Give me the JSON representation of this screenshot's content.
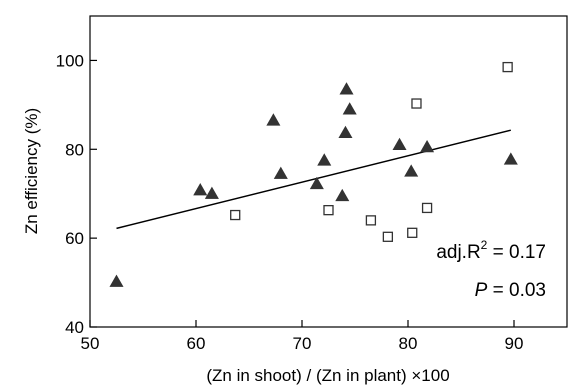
{
  "chart_data": {
    "type": "scatter",
    "title": "",
    "xlabel": "(Zn in shoot) / (Zn in plant) ×100",
    "ylabel": "Zn efficiency (%)",
    "xlim": [
      50,
      95
    ],
    "ylim": [
      40,
      110
    ],
    "xticks": [
      50,
      60,
      70,
      80,
      90
    ],
    "yticks": [
      40,
      60,
      80,
      100
    ],
    "grid": false,
    "series": [
      {
        "marker": "filled-triangle",
        "color": "#333333",
        "points": [
          [
            52.5,
            50.2
          ],
          [
            60.4,
            70.8
          ],
          [
            61.5,
            70.0
          ],
          [
            67.3,
            86.5
          ],
          [
            68.0,
            74.5
          ],
          [
            71.4,
            72.2
          ],
          [
            72.1,
            77.5
          ],
          [
            73.8,
            69.5
          ],
          [
            74.2,
            93.5
          ],
          [
            74.1,
            83.7
          ],
          [
            74.5,
            89.0
          ],
          [
            79.2,
            81.0
          ],
          [
            80.3,
            75.0
          ],
          [
            81.8,
            80.5
          ],
          [
            89.7,
            77.7
          ]
        ]
      },
      {
        "marker": "open-square",
        "color": "#333333",
        "points": [
          [
            63.7,
            65.2
          ],
          [
            72.5,
            66.3
          ],
          [
            76.5,
            64.0
          ],
          [
            78.1,
            60.3
          ],
          [
            80.4,
            61.2
          ],
          [
            80.8,
            90.3
          ],
          [
            81.8,
            66.8
          ],
          [
            89.4,
            98.5
          ]
        ]
      }
    ],
    "regression_line": {
      "x": [
        52.5,
        89.7
      ],
      "y": [
        62.2,
        84.3
      ]
    },
    "annotations": {
      "r2_prefix": "adj.R",
      "r2_sup": "2",
      "r2_value": " = 0.17",
      "p_label": "P",
      "p_value": " = 0.03"
    }
  }
}
